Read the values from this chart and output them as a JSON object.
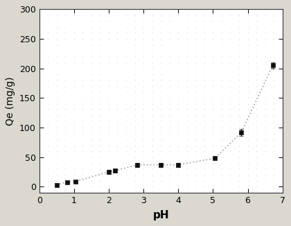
{
  "x": [
    0.5,
    0.8,
    1.05,
    2.0,
    2.18,
    2.82,
    3.5,
    4.0,
    5.05,
    5.82,
    6.72
  ],
  "y": [
    3,
    8,
    9,
    25,
    27,
    37,
    37,
    37,
    48,
    92,
    205
  ],
  "yerr": [
    1.5,
    1.5,
    1.5,
    3,
    3,
    3.5,
    3.5,
    3.5,
    3,
    6,
    5
  ],
  "xlabel": "pH",
  "ylabel": "Qe (mg/g)",
  "xlim": [
    0,
    7.0
  ],
  "ylim": [
    -10,
    300
  ],
  "xticks": [
    0,
    1,
    2,
    3,
    4,
    5,
    6,
    7
  ],
  "yticks": [
    0,
    50,
    100,
    150,
    200,
    250,
    300
  ],
  "line_color": "#aaaaaa",
  "marker_color": "#111111",
  "figure_bg_color": "#dbd8d0",
  "plot_bg_color": "#ffffff",
  "dot_color": "#cccccc",
  "title": ""
}
